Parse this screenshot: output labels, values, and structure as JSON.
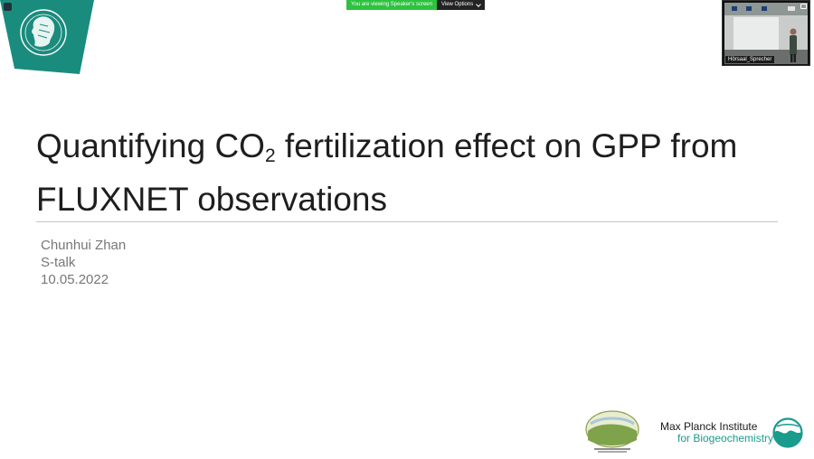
{
  "screen_share": {
    "banner_text": "You are viewing Speaker's screen",
    "view_options_label": "View Options"
  },
  "video": {
    "participant_label": "Hörsaal_Sprecher"
  },
  "slide": {
    "title_before_sub": "Quantifying CO",
    "title_subscript": "2",
    "title_after_sub": " fertilization effect on GPP from FLUXNET observations",
    "author": "Chunhui Zhan",
    "event": "S-talk",
    "date": "10.05.2022",
    "imprs_logo_text": "IMPRS gBGC",
    "institute_line1": "Max Planck Institute",
    "institute_line2": "for Biogeochemistry"
  },
  "colors": {
    "mpg_green": "#1a8c7e",
    "share_banner": "#2dc23f",
    "institute_teal": "#1a9c8c"
  }
}
